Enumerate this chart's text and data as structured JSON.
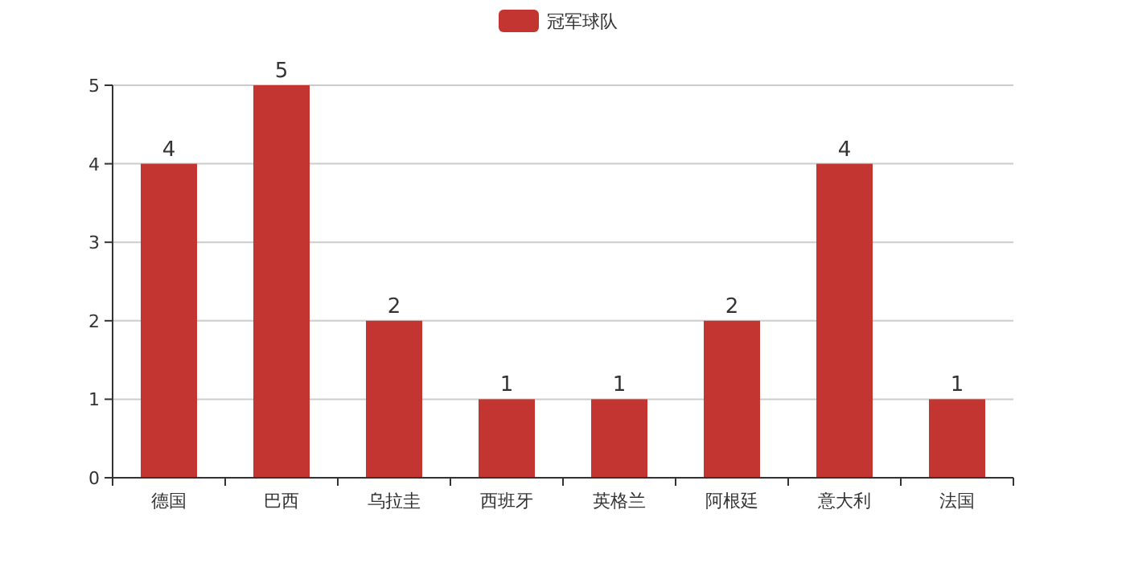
{
  "chart_data": {
    "type": "bar",
    "categories": [
      "德国",
      "巴西",
      "乌拉圭",
      "西班牙",
      "英格兰",
      "阿根廷",
      "意大利",
      "法国"
    ],
    "series": [
      {
        "name": "冠军球队",
        "color": "#c23531",
        "values": [
          4,
          5,
          2,
          1,
          1,
          2,
          4,
          1
        ]
      }
    ],
    "ylim": [
      0,
      5
    ],
    "yticks": [
      0,
      1,
      2,
      3,
      4,
      5
    ],
    "grid": "y",
    "legend": "top",
    "data_labels": true
  }
}
